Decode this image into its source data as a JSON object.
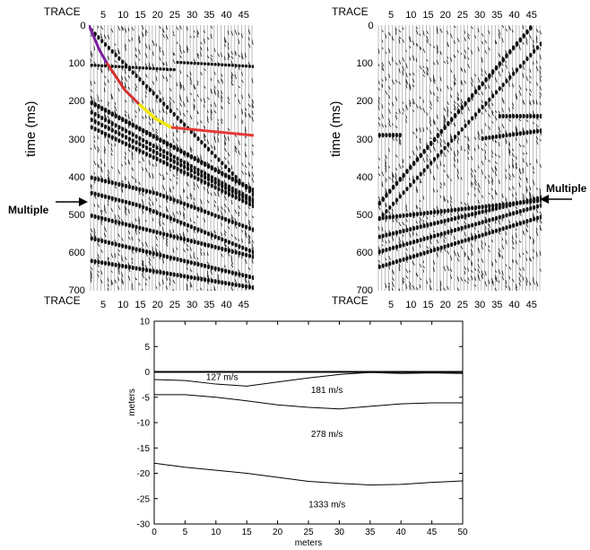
{
  "panel_left": {
    "trace_label_top": "TRACE",
    "trace_label_bottom": "TRACE",
    "trace_ticks": [
      "5",
      "10",
      "15",
      "20",
      "25",
      "30",
      "35",
      "40",
      "45"
    ],
    "time_ticks": [
      "0",
      "100",
      "200",
      "300",
      "400",
      "500",
      "600",
      "700"
    ],
    "ylabel": "time (ms)",
    "annotation": "Multiple",
    "pick_colors": [
      "#7b1fa2",
      "#d32f2f",
      "#f2e600",
      "#e53935"
    ]
  },
  "panel_right": {
    "trace_label_top": "TRACE",
    "trace_label_bottom": "TRACE",
    "trace_ticks": [
      "5",
      "10",
      "15",
      "20",
      "25",
      "30",
      "35",
      "40",
      "45"
    ],
    "time_ticks": [
      "0",
      "100",
      "200",
      "300",
      "400",
      "500",
      "600",
      "700"
    ],
    "ylabel": "time (ms)",
    "annotation": "Multiple"
  },
  "chart_data": {
    "type": "line",
    "xlabel": "meters",
    "ylabel": "meters",
    "xlim": [
      0,
      50
    ],
    "ylim": [
      -30,
      10
    ],
    "xticks": [
      "0",
      "5",
      "10",
      "15",
      "20",
      "25",
      "30",
      "35",
      "40",
      "45",
      "50"
    ],
    "yticks": [
      "10",
      "5",
      "0",
      "-5",
      "-10",
      "-15",
      "-20",
      "-25",
      "-30"
    ],
    "layer_labels": [
      {
        "text": "127 m/s",
        "x": 11,
        "y": -1.1
      },
      {
        "text": "181 m/s",
        "x": 28,
        "y": -3.6
      },
      {
        "text": "278 m/s",
        "x": 28,
        "y": -12.3
      },
      {
        "text": "1333 m/s",
        "x": 28,
        "y": -26.2
      }
    ],
    "series": [
      {
        "values": [
          [
            0,
            0
          ],
          [
            50,
            0
          ]
        ]
      },
      {
        "values": [
          [
            0,
            -1.5
          ],
          [
            5,
            -1.7
          ],
          [
            10,
            -2.4
          ],
          [
            15,
            -2.8
          ],
          [
            20,
            -2.0
          ],
          [
            25,
            -1.2
          ],
          [
            30,
            -0.5
          ],
          [
            35,
            -0.1
          ],
          [
            40,
            -0.3
          ],
          [
            45,
            -0.2
          ],
          [
            50,
            -0.3
          ]
        ]
      },
      {
        "values": [
          [
            0,
            -4.5
          ],
          [
            5,
            -4.5
          ],
          [
            10,
            -5.0
          ],
          [
            15,
            -5.7
          ],
          [
            20,
            -6.5
          ],
          [
            25,
            -7.0
          ],
          [
            30,
            -7.3
          ],
          [
            35,
            -6.8
          ],
          [
            40,
            -6.3
          ],
          [
            45,
            -6.1
          ],
          [
            50,
            -6.1
          ]
        ]
      },
      {
        "values": [
          [
            0,
            -18
          ],
          [
            5,
            -18.8
          ],
          [
            10,
            -19.4
          ],
          [
            15,
            -20.0
          ],
          [
            20,
            -20.8
          ],
          [
            25,
            -21.6
          ],
          [
            30,
            -22.0
          ],
          [
            35,
            -22.3
          ],
          [
            40,
            -22.2
          ],
          [
            45,
            -21.8
          ],
          [
            50,
            -21.5
          ]
        ]
      }
    ]
  }
}
